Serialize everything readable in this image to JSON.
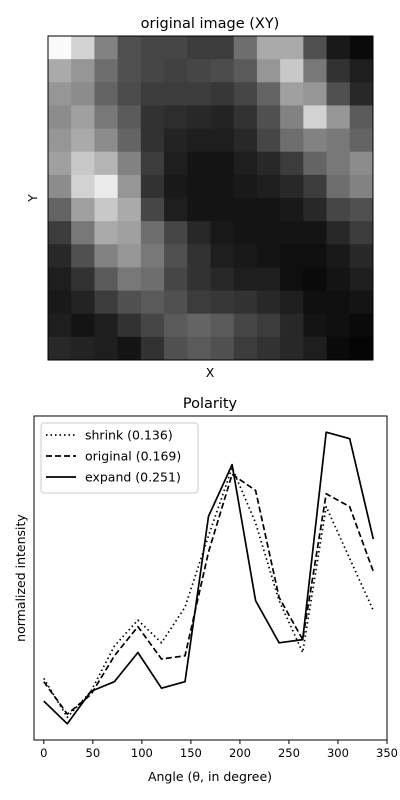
{
  "chart_data": [
    {
      "type": "heatmap",
      "title": "original image (XY)",
      "xlabel": "X",
      "ylabel": "Y",
      "colormap": "gray",
      "grid": false,
      "rows": 14,
      "cols": 14,
      "values": [
        [
          250,
          210,
          130,
          80,
          70,
          70,
          60,
          60,
          110,
          170,
          170,
          80,
          25,
          10
        ],
        [
          170,
          150,
          110,
          80,
          70,
          65,
          70,
          75,
          90,
          150,
          200,
          120,
          50,
          30
        ],
        [
          150,
          140,
          100,
          75,
          60,
          60,
          60,
          55,
          70,
          100,
          160,
          150,
          80,
          40
        ],
        [
          140,
          160,
          120,
          90,
          50,
          45,
          40,
          35,
          50,
          80,
          130,
          210,
          150,
          90
        ],
        [
          150,
          170,
          140,
          100,
          50,
          35,
          30,
          30,
          40,
          70,
          110,
          130,
          120,
          100
        ],
        [
          160,
          200,
          180,
          130,
          60,
          30,
          20,
          20,
          30,
          40,
          60,
          100,
          120,
          140
        ],
        [
          140,
          210,
          235,
          150,
          50,
          25,
          20,
          20,
          25,
          30,
          40,
          60,
          110,
          130
        ],
        [
          100,
          160,
          200,
          170,
          70,
          30,
          20,
          20,
          20,
          20,
          25,
          40,
          70,
          80
        ],
        [
          60,
          120,
          170,
          160,
          110,
          70,
          40,
          25,
          20,
          20,
          20,
          20,
          40,
          60
        ],
        [
          40,
          80,
          130,
          150,
          120,
          80,
          50,
          30,
          25,
          20,
          15,
          15,
          25,
          40
        ],
        [
          30,
          50,
          90,
          120,
          110,
          70,
          50,
          40,
          30,
          30,
          15,
          10,
          20,
          30
        ],
        [
          25,
          35,
          60,
          80,
          90,
          80,
          60,
          55,
          50,
          40,
          30,
          15,
          15,
          20
        ],
        [
          30,
          20,
          30,
          50,
          70,
          90,
          100,
          90,
          70,
          60,
          40,
          20,
          15,
          10
        ],
        [
          40,
          35,
          30,
          20,
          50,
          80,
          90,
          80,
          60,
          50,
          40,
          30,
          10,
          5
        ]
      ]
    },
    {
      "type": "line",
      "title": "Polarity",
      "xlabel": "Angle (θ, in degree)",
      "ylabel": "normalized intensity",
      "x": [
        0,
        24,
        48,
        72,
        96,
        120,
        144,
        168,
        192,
        216,
        240,
        264,
        288,
        312,
        336
      ],
      "xticks": [
        0,
        50,
        100,
        150,
        200,
        250,
        300,
        350
      ],
      "xlim": [
        -10,
        350
      ],
      "ylim": [
        0,
        1
      ],
      "grid": false,
      "legend_position": "top-left",
      "series": [
        {
          "name": "shrink (0.136)",
          "style": "dotted",
          "color": "#000000",
          "values": [
            0.19,
            0.07,
            0.15,
            0.29,
            0.37,
            0.3,
            0.41,
            0.63,
            0.84,
            0.67,
            0.43,
            0.27,
            0.72,
            0.56,
            0.4
          ]
        },
        {
          "name": "original (0.169)",
          "style": "dashed",
          "color": "#000000",
          "values": [
            0.18,
            0.08,
            0.14,
            0.26,
            0.35,
            0.25,
            0.26,
            0.58,
            0.82,
            0.77,
            0.44,
            0.31,
            0.76,
            0.72,
            0.52
          ]
        },
        {
          "name": "expand (0.251)",
          "style": "solid",
          "color": "#000000",
          "values": [
            0.12,
            0.05,
            0.15,
            0.18,
            0.27,
            0.16,
            0.18,
            0.69,
            0.85,
            0.43,
            0.3,
            0.31,
            0.95,
            0.93,
            0.62
          ]
        }
      ]
    }
  ]
}
